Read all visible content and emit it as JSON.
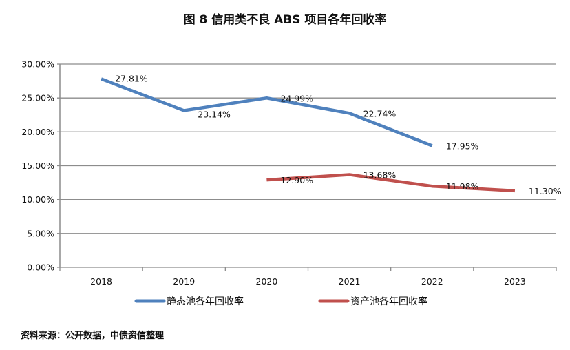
{
  "title": "图 8 信用类不良 ABS 项目各年回收率",
  "source": "资料来源：公开数据，中债资信整理",
  "chart_data": {
    "type": "line",
    "title": "图 8 信用类不良 ABS 项目各年回收率",
    "categories": [
      "2018",
      "2019",
      "2020",
      "2021",
      "2022",
      "2023"
    ],
    "ylim": [
      0,
      30
    ],
    "yticks": [
      "0.00%",
      "5.00%",
      "10.00%",
      "15.00%",
      "20.00%",
      "25.00%",
      "30.00%"
    ],
    "grid": true,
    "legend_position": "bottom",
    "series": [
      {
        "name": "静态池各年回收率",
        "color": "#4f81bd",
        "values": [
          27.81,
          23.14,
          24.99,
          22.74,
          17.95,
          null
        ],
        "labels": [
          "27.81%",
          "23.14%",
          "24.99%",
          "22.74%",
          "17.95%",
          null
        ]
      },
      {
        "name": "资产池各年回收率",
        "color": "#c0504d",
        "values": [
          null,
          null,
          12.9,
          13.68,
          11.98,
          11.3
        ],
        "labels": [
          null,
          null,
          "12.90%",
          "13.68%",
          "11.98%",
          "11.30%"
        ]
      }
    ]
  }
}
